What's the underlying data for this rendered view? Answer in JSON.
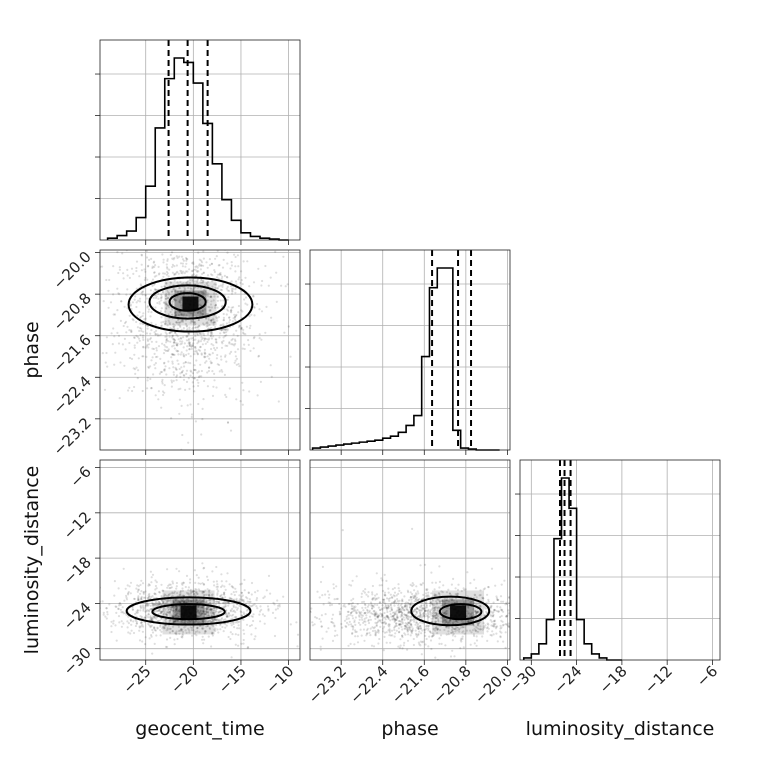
{
  "chart_data": {
    "type": "corner",
    "parameters": [
      "geocent_time",
      "phase",
      "luminosity_distance"
    ],
    "axes": {
      "geocent_time": {
        "label": "geocent_time",
        "range": [
          -29.8,
          -8.8
        ],
        "ticks": [
          -25,
          -20,
          -15,
          -10
        ],
        "tick_labels": [
          "−25",
          "−20",
          "−15",
          "−10"
        ]
      },
      "phase": {
        "label": "phase",
        "range": [
          -23.8,
          -19.95
        ],
        "ticks": [
          -23.2,
          -22.4,
          -21.6,
          -20.8,
          -20.0
        ],
        "tick_labels": [
          "−23.2",
          "−22.4",
          "−21.6",
          "−20.8",
          "−20.0"
        ]
      },
      "luminosity_distance": {
        "label": "luminosity_distance",
        "range": [
          -31.5,
          -5.0
        ],
        "ticks": [
          -30,
          -24,
          -18,
          -12,
          -6
        ],
        "tick_labels": [
          "−30",
          "−24",
          "−18",
          "−12",
          "−6"
        ]
      }
    },
    "grid": true,
    "histograms": [
      {
        "param": "geocent_time",
        "bin_edges": [
          -29,
          -28,
          -27,
          -26,
          -25,
          -24,
          -23,
          -22,
          -21,
          -20,
          -19,
          -18,
          -17,
          -16,
          -15,
          -14,
          -13,
          -12,
          -11,
          -10
        ],
        "counts": [
          2,
          5,
          10,
          25,
          60,
          125,
          180,
          203,
          198,
          175,
          130,
          85,
          45,
          22,
          8,
          4,
          2,
          1,
          0
        ],
        "quantiles": [
          -22.6,
          -20.6,
          -18.5
        ]
      },
      {
        "param": "phase",
        "bin_edges": [
          -23.75,
          -23.6,
          -23.45,
          -23.3,
          -23.15,
          -23.0,
          -22.85,
          -22.7,
          -22.55,
          -22.4,
          -22.25,
          -22.1,
          -21.95,
          -21.8,
          -21.65,
          -21.5,
          -21.35,
          -21.2,
          -21.05,
          -20.9,
          -20.75,
          -20.6,
          -20.45,
          -20.3,
          -20.15
        ],
        "counts": [
          2,
          3,
          4,
          5,
          6,
          7,
          8,
          9,
          10,
          12,
          14,
          18,
          25,
          35,
          95,
          165,
          185,
          185,
          20,
          2,
          1,
          0,
          0,
          0
        ],
        "quantiles": [
          -21.45,
          -20.95,
          -20.7
        ]
      },
      {
        "param": "luminosity_distance",
        "bin_edges": [
          -31,
          -30,
          -29,
          -28,
          -27,
          -26,
          -25,
          -24,
          -23,
          -22,
          -21,
          -20,
          -19,
          -18
        ],
        "counts": [
          1,
          3,
          8,
          20,
          60,
          90,
          75,
          20,
          8,
          3,
          1,
          0,
          0
        ],
        "quantiles": [
          -26.2,
          -25.6,
          -24.8
        ]
      }
    ],
    "scatter_2d": [
      {
        "x": "geocent_time",
        "y": "phase",
        "cloud": {
          "cx": -20.5,
          "cy": -21.2,
          "sx": 3.5,
          "sy": 0.7,
          "n": 1500
        },
        "peak": {
          "x": -20.3,
          "y": -20.98
        },
        "contours": [
          {
            "cx": -20.3,
            "cy": -21.0,
            "rx": 6.5,
            "ry": 0.52
          },
          {
            "cx": -20.6,
            "cy": -20.95,
            "rx": 4.0,
            "ry": 0.32
          },
          {
            "cx": -20.6,
            "cy": -20.95,
            "rx": 1.9,
            "ry": 0.17
          }
        ]
      },
      {
        "x": "geocent_time",
        "y": "luminosity_distance",
        "cloud": {
          "cx": -20.5,
          "cy": -24.8,
          "sx": 3.5,
          "sy": 1.6,
          "n": 1500
        },
        "peak": {
          "x": -20.5,
          "y": -25.2
        },
        "contours": [
          {
            "cx": -20.5,
            "cy": -25.0,
            "rx": 6.5,
            "ry": 1.8
          },
          {
            "cx": -20.5,
            "cy": -25.1,
            "rx": 3.8,
            "ry": 1.0
          }
        ]
      },
      {
        "x": "phase",
        "y": "luminosity_distance",
        "cloud": {
          "cx": -21.6,
          "cy": -25.5,
          "sx": 0.9,
          "sy": 1.8,
          "n": 1500
        },
        "peak": {
          "x": -20.95,
          "y": -25.2
        },
        "contours": [
          {
            "cx": -21.1,
            "cy": -25.0,
            "rx": 0.75,
            "ry": 1.9
          },
          {
            "cx": -20.9,
            "cy": -25.1,
            "rx": 0.4,
            "ry": 1.0
          }
        ]
      }
    ]
  }
}
